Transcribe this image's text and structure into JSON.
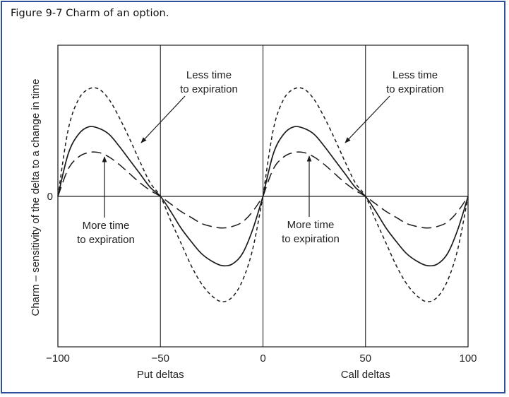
{
  "figure_title": "Figure 9-7  Charm of an option.",
  "chart_data": {
    "type": "line",
    "title": "Charm of an option.",
    "ylabel": "Charm – sensitivity of the delta to a change in time",
    "xlabel_left": "Put deltas",
    "xlabel_right": "Call deltas",
    "xlim": [
      -100,
      100
    ],
    "ylim": [
      -1.0,
      1.0
    ],
    "x_ticks": [
      "−100",
      "−50",
      "0",
      "50",
      "100"
    ],
    "x_tick_values": [
      -100,
      -50,
      0,
      50,
      100
    ],
    "y_ticks": [
      "0"
    ],
    "grid_vertical": [
      -100,
      -50,
      0,
      50,
      100
    ],
    "grid_on": true,
    "series": [
      {
        "style": "short-dash",
        "x": [
          -100,
          -95,
          -90,
          -85,
          -80,
          -75,
          -70,
          -65,
          -60,
          -55,
          -50,
          -45,
          -40,
          -35,
          -30,
          -25,
          -20,
          -15,
          -10,
          -5,
          0
        ],
        "values": [
          0,
          0.44,
          0.64,
          0.71,
          0.71,
          0.64,
          0.52,
          0.38,
          0.23,
          0.09,
          0,
          -0.16,
          -0.31,
          -0.46,
          -0.58,
          -0.66,
          -0.7,
          -0.67,
          -0.56,
          -0.35,
          0
        ]
      },
      {
        "style": "solid",
        "x": [
          -100,
          -95,
          -90,
          -85,
          -80,
          -75,
          -70,
          -65,
          -60,
          -55,
          -50,
          -45,
          -40,
          -35,
          -30,
          -25,
          -20,
          -15,
          -10,
          -5,
          0
        ],
        "values": [
          0,
          0.28,
          0.41,
          0.46,
          0.45,
          0.41,
          0.33,
          0.24,
          0.15,
          0.06,
          0,
          -0.1,
          -0.21,
          -0.3,
          -0.38,
          -0.43,
          -0.46,
          -0.45,
          -0.38,
          -0.22,
          0
        ]
      },
      {
        "style": "long-dash",
        "x": [
          -100,
          -95,
          -90,
          -85,
          -80,
          -75,
          -70,
          -65,
          -60,
          -55,
          -50,
          -45,
          -40,
          -35,
          -30,
          -25,
          -20,
          -15,
          -10,
          -5,
          0
        ],
        "values": [
          0,
          0.18,
          0.26,
          0.29,
          0.29,
          0.26,
          0.21,
          0.15,
          0.09,
          0.04,
          0,
          -0.05,
          -0.1,
          -0.14,
          -0.18,
          -0.2,
          -0.21,
          -0.2,
          -0.17,
          -0.1,
          0
        ]
      }
    ],
    "annotations": [
      {
        "lines": [
          "Less time",
          "to expiration"
        ],
        "panel": "put",
        "points_to": "short-dash"
      },
      {
        "lines": [
          "More time",
          "to expiration"
        ],
        "panel": "put",
        "points_to": "long-dash"
      },
      {
        "lines": [
          "Less time",
          "to expiration"
        ],
        "panel": "call",
        "points_to": "short-dash"
      },
      {
        "lines": [
          "More time",
          "to expiration"
        ],
        "panel": "call",
        "points_to": "long-dash"
      }
    ]
  }
}
